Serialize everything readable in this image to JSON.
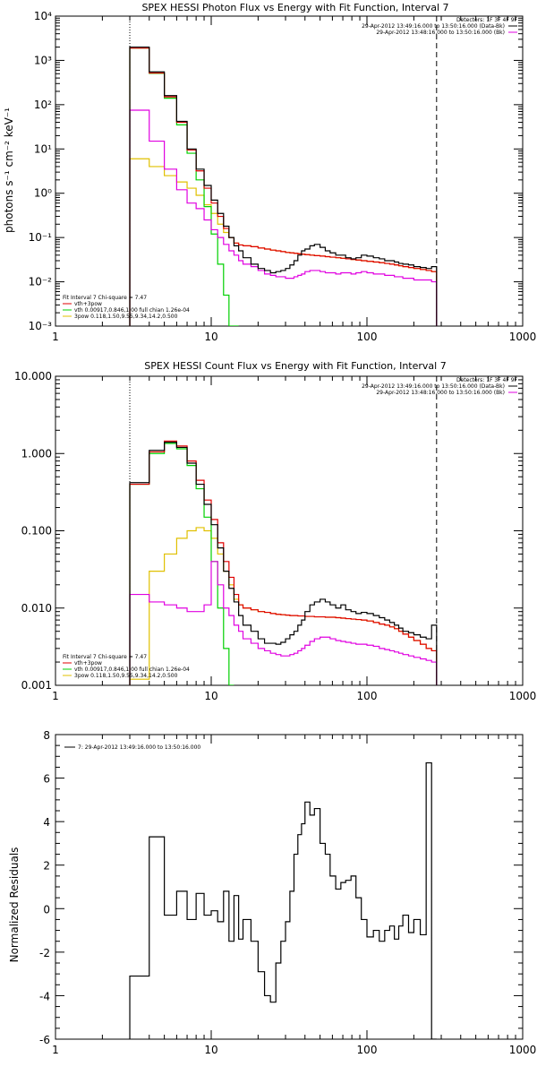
{
  "chart_data": [
    {
      "type": "line",
      "title": "SPEX HESSI Photon Flux vs Energy with Fit Function, Interval 7",
      "xlabel": "",
      "ylabel": "photons s⁻¹ cm⁻² keV⁻¹",
      "xscale": "log",
      "yscale": "log",
      "xlim": [
        1,
        1000
      ],
      "ylim": [
        0.001,
        10000
      ],
      "xticks": [
        "1",
        "10",
        "100",
        "1000"
      ],
      "yticks": [
        "10⁴",
        "10³",
        "10²",
        "10¹",
        "10⁰",
        "10⁻¹",
        "10⁻²",
        "10⁻³"
      ],
      "legend_top": {
        "header": "Detectors: 1F 3F 4F 9F",
        "entries": [
          {
            "text": "29-Apr-2012 13:49:16.000 to 13:50:16.000 (Data-Bk)",
            "color": "#000000"
          },
          {
            "text": "29-Apr-2012 13:48:16.000 to 13:50:16.000 (Bk)",
            "color": "#e000e0"
          }
        ]
      },
      "legend_bottom": {
        "header": "Fit Interval 7   Chi-square = 7.47",
        "entries": [
          {
            "text": "vth+3pow",
            "color": "#e00000"
          },
          {
            "text": "vth 0.00917,0.846,1.00   full chian 1.26e-04",
            "color": "#00d000"
          },
          {
            "text": "3pow 0.118,1.50,9.55,9.34,14.2,0.500",
            "color": "#e0c000"
          }
        ]
      },
      "vlines": [
        {
          "x": 3,
          "style": "dotted"
        },
        {
          "x": 280,
          "style": "dashed"
        }
      ],
      "x_edges": [
        3,
        4,
        5,
        6,
        7,
        8,
        9,
        10,
        11,
        12,
        13,
        14,
        15,
        16,
        18,
        20,
        22,
        24,
        26,
        28,
        30,
        32,
        34,
        36,
        38,
        40,
        43,
        46,
        50,
        54,
        58,
        63,
        68,
        73,
        79,
        85,
        92,
        100,
        110,
        120,
        130,
        140,
        150,
        160,
        170,
        185,
        200,
        220,
        240,
        260,
        280
      ],
      "series": [
        {
          "name": "Data-Bk",
          "color": "#000000",
          "values": [
            2000,
            550,
            160,
            42,
            10,
            3.5,
            1.5,
            0.7,
            0.35,
            0.18,
            0.1,
            0.065,
            0.05,
            0.035,
            0.025,
            0.02,
            0.018,
            0.016,
            0.017,
            0.018,
            0.02,
            0.024,
            0.03,
            0.04,
            0.05,
            0.055,
            0.065,
            0.07,
            0.06,
            0.05,
            0.045,
            0.04,
            0.04,
            0.035,
            0.033,
            0.035,
            0.04,
            0.038,
            0.035,
            0.033,
            0.03,
            0.03,
            0.028,
            0.026,
            0.025,
            0.024,
            0.022,
            0.021,
            0.02,
            0.022
          ]
        },
        {
          "name": "Bk",
          "color": "#e000e0",
          "values": [
            75,
            15,
            3.5,
            1.2,
            0.6,
            0.45,
            0.25,
            0.15,
            0.1,
            0.07,
            0.05,
            0.04,
            0.03,
            0.025,
            0.022,
            0.018,
            0.015,
            0.014,
            0.013,
            0.013,
            0.012,
            0.012,
            0.013,
            0.014,
            0.015,
            0.017,
            0.018,
            0.018,
            0.017,
            0.016,
            0.016,
            0.015,
            0.016,
            0.016,
            0.015,
            0.016,
            0.017,
            0.016,
            0.015,
            0.015,
            0.014,
            0.014,
            0.013,
            0.013,
            0.012,
            0.012,
            0.011,
            0.011,
            0.011,
            0.01
          ]
        },
        {
          "name": "vth+3pow",
          "color": "#e00000",
          "values": [
            1900,
            520,
            150,
            40,
            9.5,
            3.2,
            1.3,
            0.6,
            0.3,
            0.16,
            0.1,
            0.075,
            0.068,
            0.065,
            0.062,
            0.058,
            0.055,
            0.052,
            0.05,
            0.048,
            0.046,
            0.045,
            0.044,
            0.043,
            0.042,
            0.041,
            0.04,
            0.039,
            0.038,
            0.037,
            0.036,
            0.035,
            0.034,
            0.033,
            0.032,
            0.031,
            0.03,
            0.029,
            0.028,
            0.027,
            0.026,
            0.025,
            0.024,
            0.023,
            0.022,
            0.021,
            0.02,
            0.019,
            0.018,
            0.017
          ]
        },
        {
          "name": "vth",
          "color": "#00d000",
          "values": [
            1900,
            510,
            140,
            35,
            8,
            2,
            0.5,
            0.12,
            0.025,
            0.005,
            0.001,
            0.0002
          ]
        },
        {
          "name": "3pow",
          "color": "#e0c000",
          "values": [
            6,
            4,
            2.5,
            1.8,
            1.3,
            0.9,
            0.55,
            0.35,
            0.2,
            0.13,
            0.1,
            0.075,
            0.068,
            0.065,
            0.062,
            0.058,
            0.055,
            0.052,
            0.05,
            0.048,
            0.046,
            0.045,
            0.044,
            0.043,
            0.042,
            0.041,
            0.04,
            0.039,
            0.038,
            0.037,
            0.036,
            0.035,
            0.034,
            0.033,
            0.032,
            0.031,
            0.03,
            0.029,
            0.028,
            0.027,
            0.026,
            0.025,
            0.024,
            0.023,
            0.022,
            0.021,
            0.02,
            0.019,
            0.018,
            0.017
          ]
        }
      ]
    },
    {
      "type": "line",
      "title": "SPEX HESSI Count Flux vs Energy with Fit Function, Interval 7",
      "xlabel": "",
      "ylabel": "",
      "xscale": "log",
      "yscale": "log",
      "xlim": [
        1,
        1000
      ],
      "ylim": [
        0.001,
        10
      ],
      "xticks": [
        "1",
        "10",
        "100",
        "1000"
      ],
      "yticks": [
        "10.000",
        "1.000",
        "0.100",
        "0.010",
        "0.001"
      ],
      "legend_top": {
        "header": "Detectors: 1F 3F 4F 9F",
        "entries": [
          {
            "text": "29-Apr-2012 13:49:16.000 to 13:50:16.000 (Data-Bk)",
            "color": "#000000"
          },
          {
            "text": "29-Apr-2012 13:48:16.000 to 13:50:16.000 (Bk)",
            "color": "#e000e0"
          }
        ]
      },
      "legend_bottom": {
        "header": "Fit Interval 7   Chi-square = 7.47",
        "entries": [
          {
            "text": "vth+3pow",
            "color": "#e00000"
          },
          {
            "text": "vth 0.00917,0.846,1.00   full chian 1.26e-04",
            "color": "#00d000"
          },
          {
            "text": "3pow 0.118,1.50,9.55,9.34,14.2,0.500",
            "color": "#e0c000"
          }
        ]
      },
      "vlines": [
        {
          "x": 3,
          "style": "dotted"
        },
        {
          "x": 280,
          "style": "dashed"
        }
      ],
      "x_edges": [
        3,
        4,
        5,
        6,
        7,
        8,
        9,
        10,
        11,
        12,
        13,
        14,
        15,
        16,
        18,
        20,
        22,
        24,
        26,
        28,
        30,
        32,
        34,
        36,
        38,
        40,
        43,
        46,
        50,
        54,
        58,
        63,
        68,
        73,
        79,
        85,
        92,
        100,
        110,
        120,
        130,
        140,
        150,
        160,
        170,
        185,
        200,
        220,
        240,
        260,
        280
      ],
      "series": [
        {
          "name": "Data-Bk",
          "color": "#000000",
          "values": [
            0.42,
            1.1,
            1.4,
            1.2,
            0.75,
            0.4,
            0.22,
            0.12,
            0.06,
            0.03,
            0.018,
            0.012,
            0.008,
            0.006,
            0.005,
            0.004,
            0.0035,
            0.0035,
            0.0034,
            0.0036,
            0.004,
            0.0045,
            0.005,
            0.006,
            0.007,
            0.009,
            0.011,
            0.012,
            0.013,
            0.012,
            0.011,
            0.01,
            0.011,
            0.0095,
            0.009,
            0.0085,
            0.0088,
            0.0085,
            0.008,
            0.0075,
            0.007,
            0.0065,
            0.006,
            0.0055,
            0.005,
            0.0048,
            0.0045,
            0.0042,
            0.004,
            0.006
          ]
        },
        {
          "name": "Bk",
          "color": "#e000e0",
          "values": [
            0.015,
            0.012,
            0.011,
            0.01,
            0.009,
            0.009,
            0.011,
            0.04,
            0.02,
            0.01,
            0.008,
            0.006,
            0.005,
            0.004,
            0.0035,
            0.003,
            0.0028,
            0.0026,
            0.0025,
            0.0024,
            0.0024,
            0.0025,
            0.0026,
            0.0028,
            0.003,
            0.0033,
            0.0037,
            0.004,
            0.0042,
            0.0042,
            0.004,
            0.0038,
            0.0037,
            0.0036,
            0.0035,
            0.0034,
            0.0034,
            0.0033,
            0.0032,
            0.003,
            0.0029,
            0.0028,
            0.0027,
            0.0026,
            0.0025,
            0.0024,
            0.0023,
            0.0022,
            0.0021,
            0.002
          ]
        },
        {
          "name": "vth+3pow",
          "color": "#e00000",
          "values": [
            0.4,
            1.05,
            1.45,
            1.25,
            0.8,
            0.45,
            0.25,
            0.14,
            0.07,
            0.04,
            0.025,
            0.015,
            0.011,
            0.01,
            0.0095,
            0.009,
            0.0088,
            0.0085,
            0.0083,
            0.0082,
            0.0081,
            0.008,
            0.008,
            0.0079,
            0.0079,
            0.0078,
            0.0078,
            0.0077,
            0.0077,
            0.0076,
            0.0076,
            0.0075,
            0.0074,
            0.0073,
            0.0072,
            0.0071,
            0.007,
            0.0068,
            0.0065,
            0.0062,
            0.006,
            0.0057,
            0.0054,
            0.005,
            0.0046,
            0.0042,
            0.0038,
            0.0034,
            0.003,
            0.0028
          ]
        },
        {
          "name": "vth",
          "color": "#00d000",
          "values": [
            0.4,
            1.0,
            1.35,
            1.15,
            0.7,
            0.35,
            0.15,
            0.04,
            0.01,
            0.003,
            0.0008
          ]
        },
        {
          "name": "3pow",
          "color": "#e0c000",
          "values": [
            0.0012,
            0.03,
            0.05,
            0.08,
            0.1,
            0.11,
            0.1,
            0.08,
            0.05,
            0.03,
            0.02,
            0.013,
            0.011,
            0.01,
            0.0095,
            0.009,
            0.0088,
            0.0085,
            0.0083,
            0.0082,
            0.0081,
            0.008,
            0.008,
            0.0079,
            0.0079,
            0.0078,
            0.0078,
            0.0077,
            0.0077,
            0.0076,
            0.0076,
            0.0075,
            0.0074,
            0.0073,
            0.0072,
            0.0071,
            0.007,
            0.0068,
            0.0065,
            0.0062,
            0.006,
            0.0057,
            0.0054,
            0.005,
            0.0046,
            0.0042,
            0.0038,
            0.0034,
            0.003,
            0.0028
          ]
        }
      ]
    },
    {
      "type": "line",
      "title": "",
      "xlabel": "",
      "ylabel": "Normalized Residuals",
      "xscale": "log",
      "yscale": "linear",
      "xlim": [
        1,
        1000
      ],
      "ylim": [
        -6,
        8
      ],
      "xticks": [
        "1",
        "10",
        "100",
        "1000"
      ],
      "yticks": [
        "8",
        "6",
        "4",
        "2",
        "0",
        "-2",
        "-4",
        "-6"
      ],
      "legend_top": {
        "header": "",
        "entries": [
          {
            "text": "7: 29-Apr-2012 13:49:16.000 to 13:50:16.000",
            "color": "#000000"
          }
        ]
      },
      "vlines": [],
      "x_edges": [
        3,
        4,
        5,
        6,
        7,
        8,
        9,
        10,
        11,
        12,
        13,
        14,
        15,
        16,
        18,
        20,
        22,
        24,
        26,
        28,
        30,
        32,
        34,
        36,
        38,
        40,
        43,
        46,
        50,
        54,
        58,
        63,
        68,
        73,
        79,
        85,
        92,
        100,
        110,
        120,
        130,
        140,
        150,
        160,
        170,
        185,
        200,
        220,
        240,
        260,
        280
      ],
      "series": [
        {
          "name": "7: 29-Apr-2012 13:49:16.000 to 13:50:16.000",
          "color": "#000000",
          "values": [
            -3.1,
            3.3,
            -0.3,
            0.8,
            -0.5,
            0.7,
            -0.3,
            -0.1,
            -0.6,
            0.8,
            -1.5,
            0.6,
            -1.4,
            -0.5,
            -1.5,
            -2.9,
            -4.0,
            -4.3,
            -2.5,
            -1.5,
            -0.6,
            0.8,
            2.5,
            3.4,
            3.9,
            4.9,
            4.3,
            4.6,
            3.0,
            2.5,
            1.5,
            0.9,
            1.2,
            1.3,
            1.5,
            0.5,
            -0.5,
            -1.3,
            -1.0,
            -1.5,
            -1.0,
            -0.8,
            -1.4,
            -0.8,
            -0.3,
            -1.1,
            -0.5,
            -1.2,
            6.7,
            -6.0
          ]
        }
      ]
    }
  ]
}
